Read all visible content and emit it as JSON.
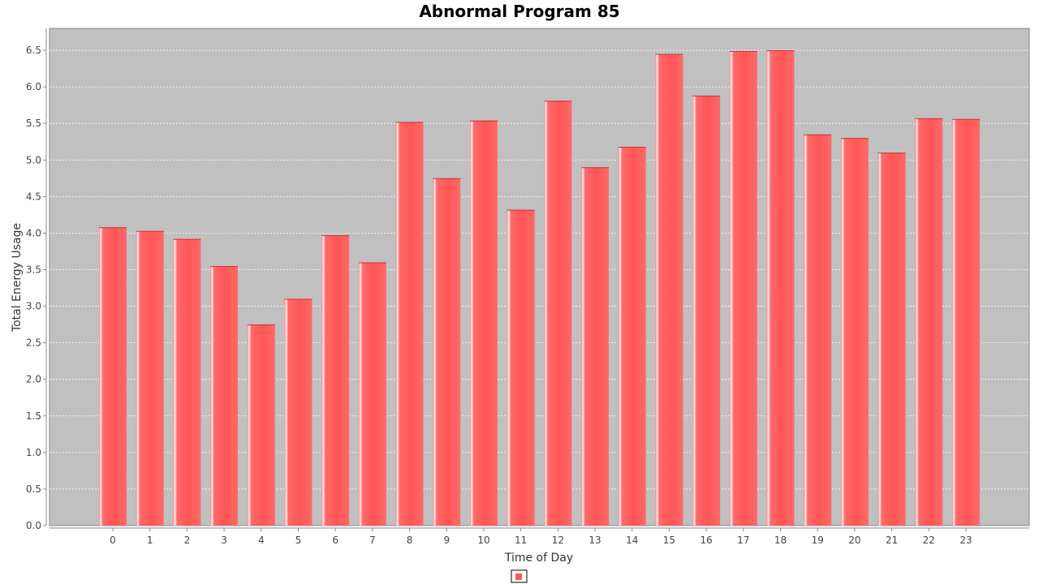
{
  "chart_data": {
    "type": "bar",
    "title": "Abnormal Program 85",
    "xlabel": "Time of Day",
    "ylabel": "Total Energy Usage",
    "ylim": [
      0,
      6.8
    ],
    "yticks": [
      0.0,
      0.5,
      1.0,
      1.5,
      2.0,
      2.5,
      3.0,
      3.5,
      4.0,
      4.5,
      5.0,
      5.5,
      6.0,
      6.5
    ],
    "categories": [
      "0",
      "1",
      "2",
      "3",
      "4",
      "5",
      "6",
      "7",
      "8",
      "9",
      "10",
      "11",
      "12",
      "13",
      "14",
      "15",
      "16",
      "17",
      "18",
      "19",
      "20",
      "21",
      "22",
      "23"
    ],
    "series": [
      {
        "name": "",
        "values": [
          4.08,
          4.03,
          3.92,
          3.55,
          2.75,
          3.1,
          3.97,
          3.6,
          5.52,
          4.75,
          5.54,
          4.32,
          5.81,
          4.9,
          5.18,
          6.45,
          5.88,
          6.49,
          6.5,
          5.35,
          5.3,
          5.1,
          5.57,
          5.56
        ]
      }
    ],
    "grid": true,
    "legend": "bottom-center"
  },
  "colors": {
    "plot_background": "#c0c0c0",
    "bar": "#ff5555",
    "bar_highlight": "#ffffff",
    "grid_line": "#ffffff"
  }
}
